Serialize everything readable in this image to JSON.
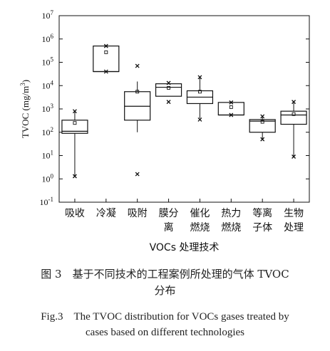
{
  "chart_data": {
    "type": "box",
    "ylabel": "TVOC (mg/m³)",
    "ylabel_parts": {
      "main": "TVOC (mg/m",
      "sup": "3",
      "close": ")"
    },
    "yscale": "log",
    "ylim": [
      0.1,
      10000000
    ],
    "y_ticks": [
      {
        "base": "10",
        "exp": "-1"
      },
      {
        "base": "10",
        "exp": "0"
      },
      {
        "base": "10",
        "exp": "1"
      },
      {
        "base": "10",
        "exp": "2"
      },
      {
        "base": "10",
        "exp": "3"
      },
      {
        "base": "10",
        "exp": "4"
      },
      {
        "base": "10",
        "exp": "5"
      },
      {
        "base": "10",
        "exp": "6"
      },
      {
        "base": "10",
        "exp": "7"
      }
    ],
    "xlabel": "VOCs 处理技术",
    "categories": [
      {
        "lines": [
          "吸收"
        ],
        "whisker_low": 1.3,
        "q1": 90,
        "median": 110,
        "q3": 330,
        "whisker_high": 800,
        "mean": 250,
        "outliers": [
          1.3,
          800
        ]
      },
      {
        "lines": [
          "冷凝"
        ],
        "whisker_low": 40000,
        "q1": 40000,
        "median": 40000,
        "q3": 500000,
        "whisker_high": 500000,
        "mean": 270000,
        "outliers": [
          40000,
          500000
        ]
      },
      {
        "lines": [
          "吸附"
        ],
        "whisker_low": 100,
        "q1": 330,
        "median": 1300,
        "q3": 5500,
        "whisker_high": 15000,
        "mean": 5500,
        "outliers": [
          1.6,
          70000
        ]
      },
      {
        "lines": [
          "膜分",
          "离"
        ],
        "whisker_low": 3500,
        "q1": 3500,
        "median": 8500,
        "q3": 12000,
        "whisker_high": 12000,
        "mean": 8000,
        "outliers": [
          2000,
          13000
        ]
      },
      {
        "lines": [
          "催化",
          "燃烧"
        ],
        "whisker_low": 400,
        "q1": 1700,
        "median": 3200,
        "q3": 6000,
        "whisker_high": 22000,
        "mean": 5500,
        "outliers": [
          350,
          23000
        ]
      },
      {
        "lines": [
          "热力",
          "燃烧"
        ],
        "whisker_low": 550,
        "q1": 550,
        "median": 550,
        "q3": 1900,
        "whisker_high": 1900,
        "mean": 1200,
        "outliers": [
          550,
          1900
        ]
      },
      {
        "lines": [
          "等离",
          "子体"
        ],
        "whisker_low": 50,
        "q1": 100,
        "median": 300,
        "q3": 350,
        "whisker_high": 480,
        "mean": 280,
        "outliers": [
          50,
          480
        ]
      },
      {
        "lines": [
          "生物",
          "处理"
        ],
        "whisker_low": 9,
        "q1": 220,
        "median": 550,
        "q3": 800,
        "whisker_high": 1800,
        "mean": 600,
        "outliers": [
          9,
          2000
        ]
      }
    ]
  },
  "caption": {
    "cn_line1": "图 3　基于不同技术的工程案例所处理的气体 TVOC",
    "cn_line2": "分布",
    "en_line1": "Fig.3　The TVOC distribution for VOCs gases treated by",
    "en_line2": "cases based on different technologies"
  }
}
